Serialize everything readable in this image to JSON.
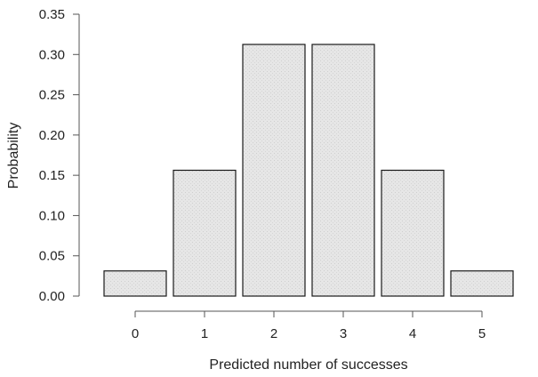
{
  "chart_data": {
    "type": "bar",
    "categories": [
      "0",
      "1",
      "2",
      "3",
      "4",
      "5"
    ],
    "values": [
      0.03125,
      0.15625,
      0.3125,
      0.3125,
      0.15625,
      0.03125
    ],
    "xlabel": "Predicted number of successes",
    "ylabel": "Probability",
    "ylim": [
      0,
      0.35
    ],
    "yticks": [
      "0.00",
      "0.05",
      "0.10",
      "0.15",
      "0.20",
      "0.25",
      "0.30",
      "0.35"
    ],
    "grid": false,
    "bar_color": "#e6e6e6",
    "edge_color": "#1a1a1a"
  }
}
